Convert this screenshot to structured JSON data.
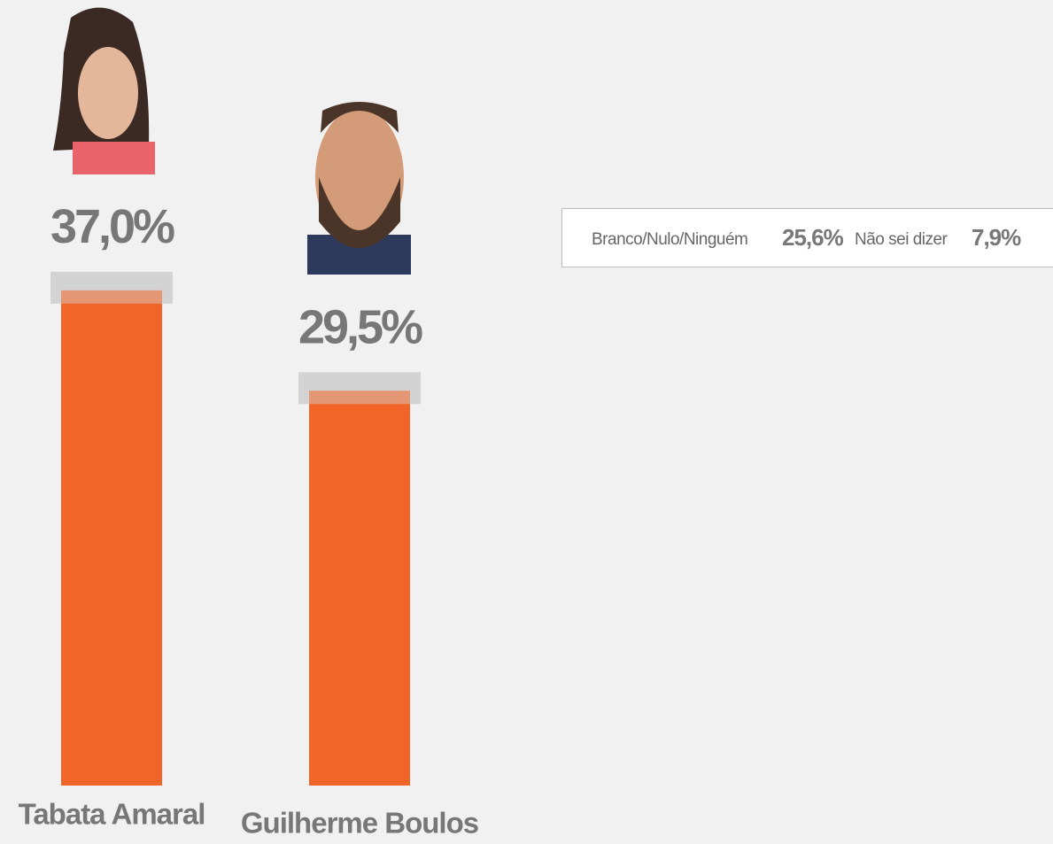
{
  "chart_data": {
    "type": "bar",
    "categories": [
      "Tabata Amaral",
      "Guilherme Boulos"
    ],
    "values": [
      37.0,
      29.5
    ],
    "value_labels": [
      "37,0%",
      "29,5%"
    ],
    "color": "#f26529",
    "others": [
      {
        "name": "Branco/Nulo/Ninguém",
        "value": 25.6,
        "value_label": "25,6%"
      },
      {
        "name": "Não sei dizer",
        "value": 7.9,
        "value_label": "7,9%"
      }
    ]
  }
}
